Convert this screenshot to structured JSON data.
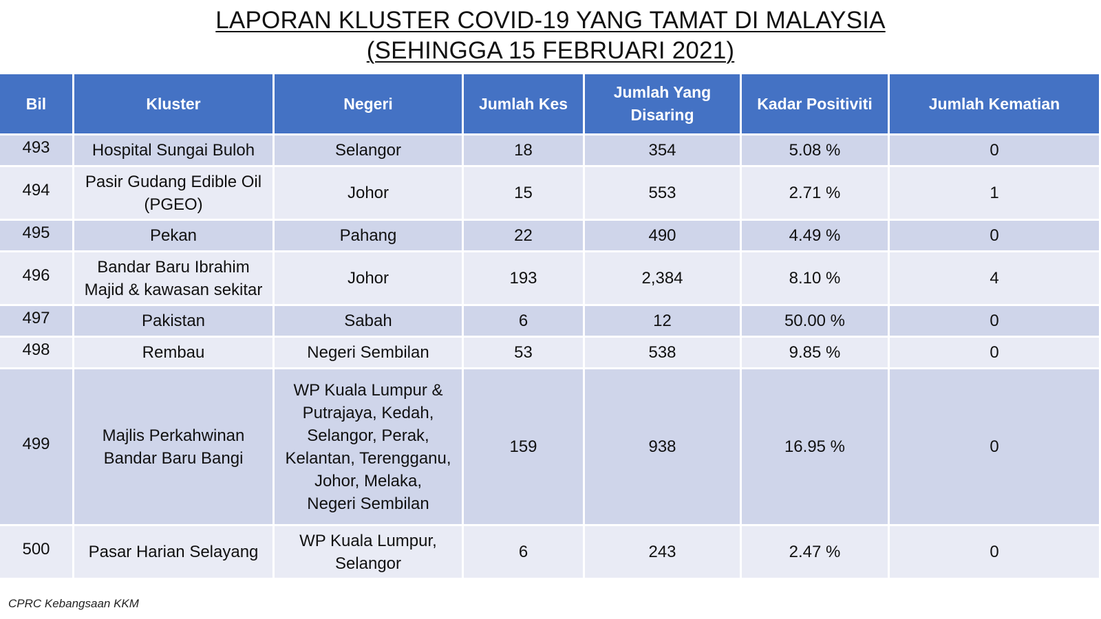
{
  "title": {
    "line1": "LAPORAN KLUSTER COVID-19 YANG TAMAT DI MALAYSIA",
    "line2": "(SEHINGGA 15 FEBRUARI 2021)"
  },
  "table": {
    "headers": {
      "bil": "Bil",
      "kluster": "Kluster",
      "negeri": "Negeri",
      "jumlah_kes": "Jumlah Kes",
      "jumlah_disaring_1": "Jumlah Yang",
      "jumlah_disaring_2": "Disaring",
      "kadar_positiviti": "Kadar Positiviti",
      "jumlah_kematian": "Jumlah Kematian"
    },
    "rows": [
      {
        "bil": "493",
        "kluster": [
          "Hospital Sungai Buloh"
        ],
        "negeri": [
          "Selangor"
        ],
        "kes": "18",
        "disaring": "354",
        "positiviti": "5.08 %",
        "kematian": "0"
      },
      {
        "bil": "494",
        "kluster": [
          "Pasir Gudang Edible Oil",
          "(PGEO)"
        ],
        "negeri": [
          "Johor"
        ],
        "kes": "15",
        "disaring": "553",
        "positiviti": "2.71 %",
        "kematian": "1"
      },
      {
        "bil": "495",
        "kluster": [
          "Pekan"
        ],
        "negeri": [
          "Pahang"
        ],
        "kes": "22",
        "disaring": "490",
        "positiviti": "4.49 %",
        "kematian": "0"
      },
      {
        "bil": "496",
        "kluster": [
          "Bandar Baru Ibrahim",
          "Majid & kawasan sekitar"
        ],
        "negeri": [
          "Johor"
        ],
        "kes": "193",
        "disaring": "2,384",
        "positiviti": "8.10 %",
        "kematian": "4"
      },
      {
        "bil": "497",
        "kluster": [
          "Pakistan"
        ],
        "negeri": [
          "Sabah"
        ],
        "kes": "6",
        "disaring": "12",
        "positiviti": "50.00 %",
        "kematian": "0"
      },
      {
        "bil": "498",
        "kluster": [
          "Rembau"
        ],
        "negeri": [
          "Negeri Sembilan"
        ],
        "kes": "53",
        "disaring": "538",
        "positiviti": "9.85 %",
        "kematian": "0"
      },
      {
        "bil": "499",
        "kluster": [
          "Majlis Perkahwinan",
          "Bandar Baru Bangi"
        ],
        "negeri": [
          "WP Kuala Lumpur &",
          "Putrajaya, Kedah,",
          "Selangor, Perak,",
          "Kelantan, Terengganu,",
          "Johor, Melaka,",
          "Negeri Sembilan"
        ],
        "kes": "159",
        "disaring": "938",
        "positiviti": "16.95 %",
        "kematian": "0"
      },
      {
        "bil": "500",
        "kluster": [
          "Pasar Harian Selayang"
        ],
        "negeri": [
          "WP Kuala Lumpur,",
          "Selangor"
        ],
        "kes": "6",
        "disaring": "243",
        "positiviti": "2.47 %",
        "kematian": "0"
      }
    ]
  },
  "footer": "CPRC Kebangsaan KKM",
  "colors": {
    "header_bg": "#4472c4",
    "row_odd": "#cfd5ea",
    "row_even": "#e9ebf5"
  }
}
